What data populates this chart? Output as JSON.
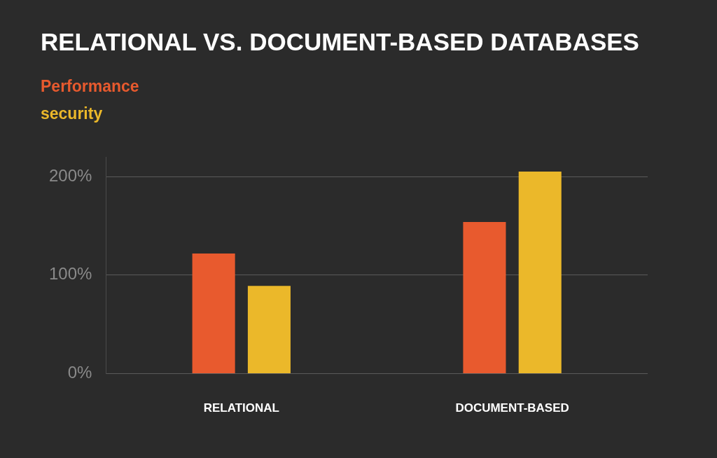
{
  "chart_data": {
    "type": "bar",
    "title": "RELATIONAL VS. DOCUMENT-BASED DATABASES",
    "categories": [
      "RELATIONAL",
      "DOCUMENT-BASED"
    ],
    "series": [
      {
        "name": "Performance",
        "color": "#e85a2e",
        "values": [
          122,
          154
        ]
      },
      {
        "name": "security",
        "color": "#ebb82a",
        "values": [
          89,
          205
        ]
      }
    ],
    "ylim": [
      0,
      220
    ],
    "yticks": [
      {
        "value": 0,
        "label": "0%"
      },
      {
        "value": 100,
        "label": "100%"
      },
      {
        "value": 200,
        "label": "200%"
      }
    ],
    "grid": "y",
    "legend": "top left"
  }
}
